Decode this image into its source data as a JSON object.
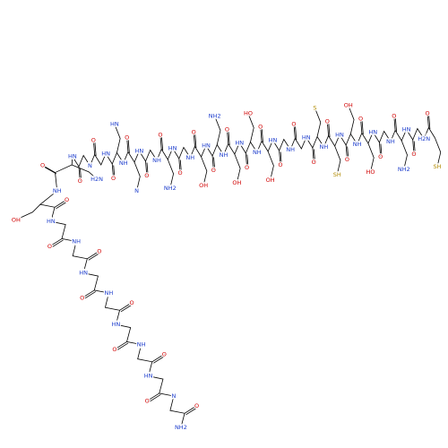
{
  "residues": [
    {
      "o": "O",
      "n": "H2N",
      "side": "SH"
    },
    {
      "o": "O",
      "n": "HN"
    },
    {
      "o": "O",
      "n": "NH",
      "side": "NH2"
    },
    {
      "o": "O",
      "n": "HN"
    },
    {
      "o": "O",
      "n": "NH",
      "side": "HO"
    },
    {
      "o": "O",
      "n": "HN",
      "side": "OH"
    },
    {
      "o": "O",
      "n": "NH",
      "side": "SH"
    },
    {
      "o": "O",
      "n": "HN",
      "side": "S"
    },
    {
      "o": "O",
      "n": "NH"
    },
    {
      "o": "O",
      "n": "HN"
    },
    {
      "o": "O",
      "n": "NH",
      "side": "OH"
    },
    {
      "o": "O",
      "n": "HN",
      "side": "HO"
    },
    {
      "o": "O",
      "n": "NH",
      "side": "OH"
    },
    {
      "o": "O",
      "n": "HN",
      "side": "NH2"
    },
    {
      "o": "O",
      "n": "NH",
      "side": "OH"
    },
    {
      "o": "O",
      "n": "HN"
    },
    {
      "o": "O",
      "n": "NH",
      "side": "NH2"
    },
    {
      "o": "O",
      "n": "HN"
    },
    {
      "o": "O",
      "n": "NH",
      "side": "N"
    },
    {
      "o": "O",
      "n": "HN",
      "side": "HN"
    },
    {
      "o": "O",
      "n": "N"
    },
    {
      "o": "O",
      "n": "HN"
    },
    {
      "o": "O",
      "n": "NH",
      "side": "H2N"
    },
    {
      "o": "O",
      "n": "HN",
      "side": "OH"
    },
    {
      "o": "O",
      "n": "NH"
    },
    {
      "o": "O",
      "n": "HN"
    },
    {
      "o": "O",
      "n": "NH"
    },
    {
      "o": "O",
      "n": "HN"
    },
    {
      "o": "O",
      "n": "NH"
    },
    {
      "o": "O",
      "n": "HN"
    },
    {
      "o": "O",
      "n": "N"
    },
    {
      "o": "O",
      "n": "NH2"
    }
  ]
}
